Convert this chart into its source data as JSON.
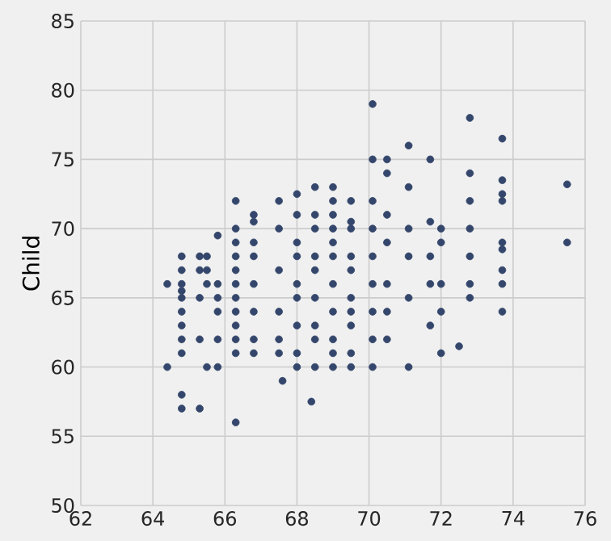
{
  "chart_data": {
    "type": "scatter",
    "ylabel": "Child",
    "color": "#34466b",
    "marker": "circle",
    "grid": true,
    "xlim": [
      62,
      76
    ],
    "ylim": [
      50,
      85
    ],
    "xticks": [
      62,
      64,
      66,
      68,
      70,
      72,
      74,
      76
    ],
    "yticks": [
      50,
      55,
      60,
      65,
      70,
      75,
      80,
      85
    ],
    "x": [
      64.4,
      64.4,
      64.8,
      64.8,
      64.8,
      64.8,
      64.8,
      64.8,
      64.8,
      64.8,
      64.8,
      64.8,
      64.8,
      65.3,
      65.3,
      65.3,
      65.3,
      65.3,
      65.5,
      65.5,
      65.5,
      65.5,
      65.8,
      65.8,
      65.8,
      65.8,
      65.8,
      65.8,
      66.3,
      66.3,
      66.3,
      66.3,
      66.3,
      66.3,
      66.3,
      66.3,
      66.3,
      66.3,
      66.3,
      66.3,
      66.8,
      66.8,
      66.8,
      66.8,
      66.8,
      66.8,
      66.8,
      66.8,
      67.5,
      67.5,
      67.5,
      67.5,
      67.5,
      67.5,
      67.6,
      68.0,
      68.0,
      68.0,
      68.0,
      68.0,
      68.0,
      68.0,
      68.0,
      68.0,
      68.4,
      68.5,
      68.5,
      68.5,
      68.5,
      68.5,
      68.5,
      68.5,
      68.5,
      68.5,
      69.0,
      69.0,
      69.0,
      69.0,
      69.0,
      69.0,
      69.0,
      69.0,
      69.0,
      69.0,
      69.0,
      69.5,
      69.5,
      69.5,
      69.5,
      69.5,
      69.5,
      69.5,
      69.5,
      69.5,
      69.5,
      70.1,
      70.1,
      70.1,
      70.1,
      70.1,
      70.1,
      70.1,
      70.1,
      70.1,
      70.5,
      70.5,
      70.5,
      70.5,
      70.5,
      70.5,
      70.5,
      71.1,
      71.1,
      71.1,
      71.1,
      71.1,
      71.1,
      71.7,
      71.7,
      71.7,
      71.7,
      71.7,
      72.0,
      72.0,
      72.0,
      72.0,
      72.0,
      72.5,
      72.8,
      72.8,
      72.8,
      72.8,
      72.8,
      72.8,
      72.8,
      73.7,
      73.7,
      73.7,
      73.7,
      73.7,
      73.7,
      73.7,
      73.7,
      73.7,
      75.5,
      75.5
    ],
    "values": [
      66.0,
      60.0,
      68.0,
      67.0,
      66.0,
      65.5,
      65.0,
      64.0,
      63.0,
      62.0,
      61.0,
      58.0,
      57.0,
      68.0,
      67.0,
      65.0,
      62.0,
      57.0,
      68.0,
      67.0,
      66.0,
      60.0,
      69.5,
      66.0,
      65.0,
      64.0,
      62.0,
      60.0,
      72.0,
      70.0,
      69.0,
      68.0,
      67.0,
      66.0,
      65.0,
      64.0,
      63.0,
      62.0,
      61.0,
      56.0,
      71.0,
      70.5,
      69.0,
      68.0,
      66.0,
      64.0,
      62.0,
      61.0,
      72.0,
      70.0,
      67.0,
      64.0,
      62.0,
      61.0,
      59.0,
      72.5,
      71.0,
      69.0,
      68.0,
      66.0,
      65.0,
      63.0,
      61.0,
      60.0,
      57.5,
      73.0,
      71.0,
      70.0,
      68.0,
      67.0,
      65.0,
      63.0,
      62.0,
      60.0,
      73.0,
      72.0,
      71.0,
      70.0,
      69.0,
      68.0,
      66.0,
      64.0,
      62.0,
      61.0,
      60.0,
      72.0,
      70.5,
      70.0,
      68.0,
      67.0,
      65.0,
      64.0,
      63.0,
      61.0,
      60.0,
      79.0,
      75.0,
      72.0,
      70.0,
      68.0,
      66.0,
      64.0,
      62.0,
      60.0,
      75.0,
      74.0,
      71.0,
      69.0,
      66.0,
      64.0,
      62.0,
      76.0,
      73.0,
      70.0,
      68.0,
      65.0,
      60.0,
      75.0,
      70.5,
      68.0,
      66.0,
      63.0,
      70.0,
      69.0,
      66.0,
      64.0,
      61.0,
      61.5,
      78.0,
      74.0,
      72.0,
      70.0,
      68.0,
      66.0,
      65.0,
      76.5,
      73.5,
      72.5,
      72.0,
      69.0,
      68.5,
      67.0,
      66.0,
      64.0,
      73.2,
      69.0
    ]
  }
}
